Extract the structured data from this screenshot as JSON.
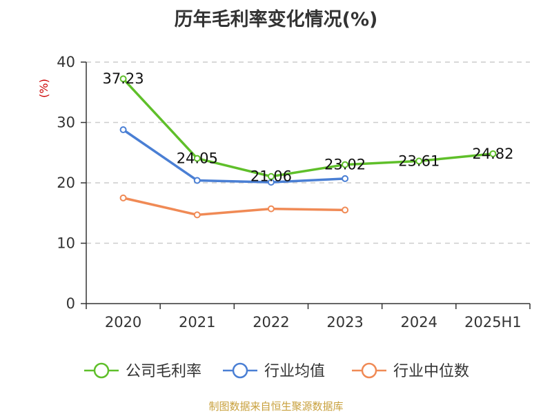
{
  "chart_data": {
    "type": "line",
    "title": "历年毛利率变化情况(%)",
    "ylabel": "(%)",
    "categories": [
      "2020",
      "2021",
      "2022",
      "2023",
      "2024",
      "2025H1"
    ],
    "ylim": [
      0,
      40
    ],
    "yticks": [
      0,
      10,
      20,
      30,
      40
    ],
    "grid": true,
    "legend_position": "bottom",
    "series": [
      {
        "name": "公司毛利率",
        "color": "#5fbf2a",
        "values": [
          37.23,
          24.05,
          21.06,
          23.02,
          23.61,
          24.82
        ],
        "labels": [
          "37.23",
          "24.05",
          "21.06",
          "23.02",
          "23.61",
          "24.82"
        ]
      },
      {
        "name": "行业均值",
        "color": "#4a7fd4",
        "values": [
          28.8,
          20.4,
          20.1,
          20.7,
          null,
          null
        ]
      },
      {
        "name": "行业中位数",
        "color": "#f08a55",
        "values": [
          17.5,
          14.7,
          15.7,
          15.5,
          null,
          null
        ]
      }
    ],
    "source": "制图数据来自恒生聚源数据库"
  }
}
